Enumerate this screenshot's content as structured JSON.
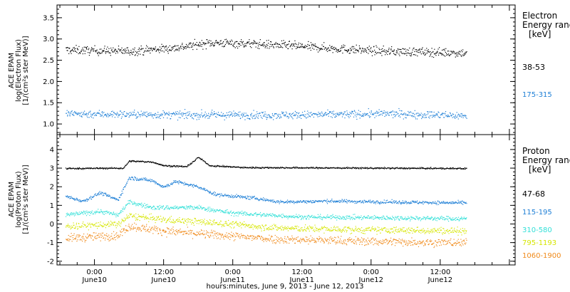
{
  "page": {
    "x_axis_title": "hours:minutes, June  9, 2013 - June 12, 2013",
    "x_ticks": [
      {
        "time": "0:00",
        "date": "June10",
        "hours": 24
      },
      {
        "time": "12:00",
        "date": "June10",
        "hours": 36
      },
      {
        "time": "0:00",
        "date": "June11",
        "hours": 48
      },
      {
        "time": "12:00",
        "date": "June11",
        "hours": 60
      },
      {
        "time": "0:00",
        "date": "June12",
        "hours": 72
      },
      {
        "time": "12:00",
        "date": "June12",
        "hours": 84
      }
    ],
    "x_range_hours": [
      17.5,
      97
    ],
    "data_end_hours": 88.5
  },
  "chart_data": [
    {
      "type": "scatter",
      "panel": "electron",
      "ylabel_lines": [
        "ACE EPAM",
        "log(Electron Flux)",
        "[1/(cm²s ster MeV)]"
      ],
      "ylim": [
        0.75,
        3.8
      ],
      "yticks": [
        1.0,
        1.5,
        2.0,
        2.5,
        3.0,
        3.5
      ],
      "legend_title": [
        "Electron",
        "Energy range",
        "[keV]"
      ],
      "series": [
        {
          "name": "38-53",
          "color": "#000000",
          "profile": [
            [
              19,
              2.75
            ],
            [
              30,
              2.72
            ],
            [
              38,
              2.8
            ],
            [
              44,
              2.92
            ],
            [
              50,
              2.9
            ],
            [
              58,
              2.85
            ],
            [
              66,
              2.78
            ],
            [
              74,
              2.72
            ],
            [
              82,
              2.7
            ],
            [
              88.5,
              2.68
            ]
          ],
          "spread": 0.1
        },
        {
          "name": "175-315",
          "color": "#1e7fd6",
          "profile": [
            [
              19,
              1.25
            ],
            [
              40,
              1.22
            ],
            [
              60,
              1.22
            ],
            [
              75,
              1.25
            ],
            [
              88.5,
              1.2
            ]
          ],
          "spread": 0.09
        }
      ]
    },
    {
      "type": "scatter",
      "panel": "proton",
      "ylabel_lines": [
        "ACE EPAM",
        "log(Proton Flux)",
        "[1/(cm²s ster MeV)]"
      ],
      "ylim": [
        -2.2,
        4.8
      ],
      "yticks": [
        -2,
        -1,
        0,
        1,
        2,
        3,
        4
      ],
      "legend_title": [
        "Proton",
        "Energy range",
        "[keV]"
      ],
      "series": [
        {
          "name": "47-68",
          "color": "#000000",
          "profile": [
            [
              19,
              3.0
            ],
            [
              29,
              3.02
            ],
            [
              30,
              3.4
            ],
            [
              34,
              3.35
            ],
            [
              36,
              3.15
            ],
            [
              40,
              3.1
            ],
            [
              42,
              3.6
            ],
            [
              44,
              3.15
            ],
            [
              50,
              3.05
            ],
            [
              88.5,
              3.0
            ]
          ],
          "spread": 0.04
        },
        {
          "name": "115-195",
          "color": "#1e7fd6",
          "profile": [
            [
              19,
              1.5
            ],
            [
              22,
              1.25
            ],
            [
              25,
              1.7
            ],
            [
              28,
              1.3
            ],
            [
              30,
              2.5
            ],
            [
              34,
              2.35
            ],
            [
              36,
              2.0
            ],
            [
              38,
              2.3
            ],
            [
              42,
              2.0
            ],
            [
              45,
              1.6
            ],
            [
              52,
              1.4
            ],
            [
              56,
              1.2
            ],
            [
              65,
              1.25
            ],
            [
              75,
              1.2
            ],
            [
              88.5,
              1.15
            ]
          ],
          "spread": 0.09
        },
        {
          "name": "310-580",
          "color": "#33e0d8",
          "profile": [
            [
              19,
              0.5
            ],
            [
              25,
              0.7
            ],
            [
              28,
              0.5
            ],
            [
              30,
              1.2
            ],
            [
              34,
              0.9
            ],
            [
              42,
              0.9
            ],
            [
              48,
              0.6
            ],
            [
              60,
              0.4
            ],
            [
              75,
              0.35
            ],
            [
              88.5,
              0.3
            ]
          ],
          "spread": 0.12
        },
        {
          "name": "795-1193",
          "color": "#d6e600",
          "profile": [
            [
              19,
              -0.1
            ],
            [
              28,
              0.0
            ],
            [
              30,
              0.45
            ],
            [
              36,
              0.25
            ],
            [
              44,
              0.1
            ],
            [
              56,
              -0.2
            ],
            [
              70,
              -0.3
            ],
            [
              88.5,
              -0.35
            ]
          ],
          "spread": 0.18
        },
        {
          "name": "1060-1900",
          "color": "#f08a1a",
          "profile": [
            [
              19,
              -0.75
            ],
            [
              28,
              -0.6
            ],
            [
              30,
              -0.1
            ],
            [
              36,
              -0.35
            ],
            [
              44,
              -0.55
            ],
            [
              56,
              -0.8
            ],
            [
              70,
              -0.9
            ],
            [
              88.5,
              -1.0
            ]
          ],
          "spread": 0.22
        }
      ]
    }
  ]
}
